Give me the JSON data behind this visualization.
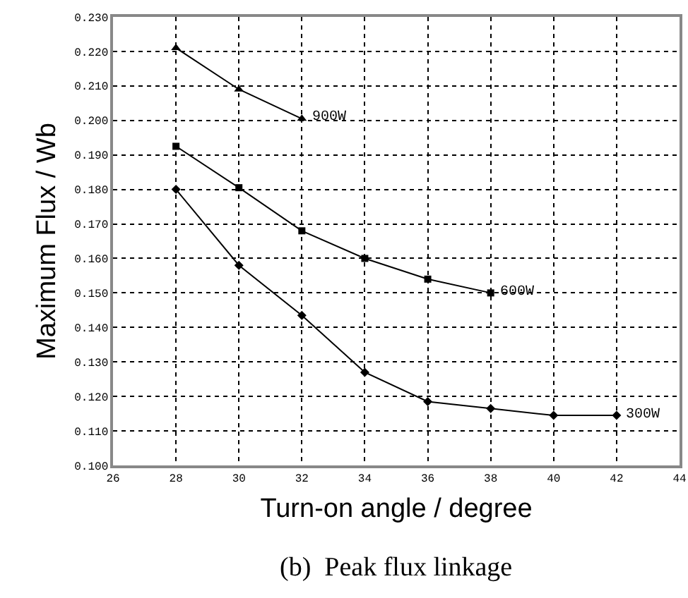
{
  "chart_data": {
    "type": "line",
    "xlabel": "Turn-on angle / degree",
    "ylabel": "Maximum Flux / Wb",
    "annotations": [
      "(b)  Peak flux linkage"
    ],
    "series": [
      {
        "name": "900W",
        "color": "#000000",
        "marker": "triangle",
        "x": [
          28,
          30,
          32
        ],
        "values": [
          0.221,
          0.209,
          0.2005
        ]
      },
      {
        "name": "600W",
        "color": "#000000",
        "marker": "square",
        "x": [
          28,
          30,
          32,
          34,
          36,
          38
        ],
        "values": [
          0.1925,
          0.1805,
          0.168,
          0.16,
          0.154,
          0.15
        ]
      },
      {
        "name": "300W",
        "color": "#000000",
        "marker": "diamond",
        "x": [
          28,
          30,
          32,
          34,
          36,
          38,
          40,
          42
        ],
        "values": [
          0.18,
          0.158,
          0.1435,
          0.127,
          0.1185,
          0.1165,
          0.1145,
          0.1145
        ]
      }
    ],
    "xlim": [
      26,
      44
    ],
    "xticks": [
      26,
      28,
      30,
      32,
      34,
      36,
      38,
      40,
      42,
      44
    ],
    "ylim": [
      0.1,
      0.23
    ],
    "yticks": [
      {
        "value": 0.1,
        "label": "0.100"
      },
      {
        "value": 0.11,
        "label": "0.110"
      },
      {
        "value": 0.12,
        "label": "0.120"
      },
      {
        "value": 0.13,
        "label": "0.130"
      },
      {
        "value": 0.14,
        "label": "0.140"
      },
      {
        "value": 0.15,
        "label": "0.150"
      },
      {
        "value": 0.16,
        "label": "0.160"
      },
      {
        "value": 0.17,
        "label": "0.170"
      },
      {
        "value": 0.18,
        "label": "0.180"
      },
      {
        "value": 0.19,
        "label": "0.190"
      },
      {
        "value": 0.2,
        "label": "0.200"
      },
      {
        "value": 0.21,
        "label": "0.210"
      },
      {
        "value": 0.22,
        "label": "0.220"
      },
      {
        "value": 0.23,
        "label": "0.230"
      }
    ],
    "grid": true,
    "legend": false,
    "line_style": "solid"
  }
}
